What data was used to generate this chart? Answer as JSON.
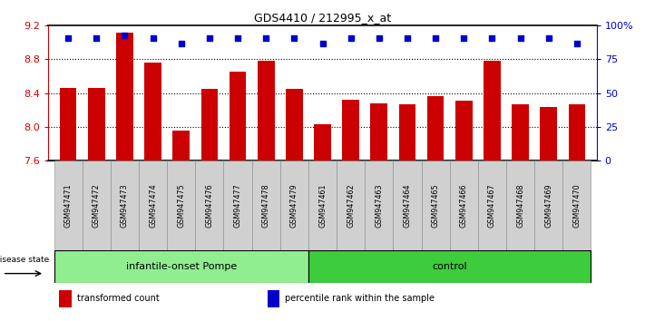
{
  "title": "GDS4410 / 212995_x_at",
  "samples": [
    "GSM947471",
    "GSM947472",
    "GSM947473",
    "GSM947474",
    "GSM947475",
    "GSM947476",
    "GSM947477",
    "GSM947478",
    "GSM947479",
    "GSM947461",
    "GSM947462",
    "GSM947463",
    "GSM947464",
    "GSM947465",
    "GSM947466",
    "GSM947467",
    "GSM947468",
    "GSM947469",
    "GSM947470"
  ],
  "bar_values": [
    8.46,
    8.46,
    9.12,
    8.76,
    7.96,
    8.45,
    8.65,
    8.78,
    8.45,
    8.03,
    8.32,
    8.28,
    8.27,
    8.36,
    8.31,
    8.78,
    8.27,
    8.24,
    8.27
  ],
  "percentile_values": [
    91,
    91,
    93,
    91,
    87,
    91,
    91,
    91,
    91,
    87,
    91,
    91,
    91,
    91,
    91,
    91,
    91,
    91,
    87
  ],
  "groups": [
    {
      "label": "infantile-onset Pompe",
      "start": 0,
      "end": 9,
      "color": "#90EE90"
    },
    {
      "label": "control",
      "start": 9,
      "end": 19,
      "color": "#3CCC3C"
    }
  ],
  "bar_color": "#CC0000",
  "dot_color": "#0000CC",
  "ylim": [
    7.6,
    9.2
  ],
  "yticks": [
    7.6,
    8.0,
    8.4,
    8.8,
    9.2
  ],
  "right_yticks": [
    0,
    25,
    50,
    75,
    100
  ],
  "right_ytick_labels": [
    "0",
    "25",
    "50",
    "75",
    "100%"
  ],
  "grid_values": [
    8.0,
    8.4,
    8.8
  ],
  "ylabel_color": "#CC0000",
  "right_ylabel_color": "#0000CC",
  "disease_state_label": "disease state",
  "legend_items": [
    {
      "color": "#CC0000",
      "label": "transformed count"
    },
    {
      "color": "#0000CC",
      "label": "percentile rank within the sample"
    }
  ]
}
